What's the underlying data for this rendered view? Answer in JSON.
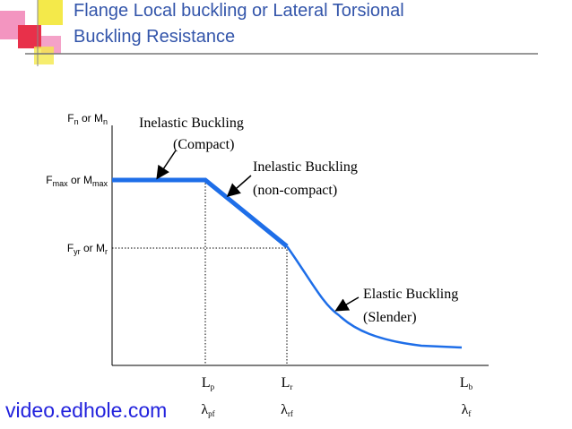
{
  "header": {
    "title_lines": [
      "Flange Local buckling or Lateral Torsional",
      "Buckling Resistance"
    ]
  },
  "diagram": {
    "y_labels": [
      [
        {
          "text": "F"
        },
        {
          "text": "n",
          "sub": true
        },
        {
          "text": " or M"
        },
        {
          "text": "n",
          "sub": true
        }
      ],
      [
        {
          "text": "F"
        },
        {
          "text": "max",
          "sub": true
        },
        {
          "text": " or M"
        },
        {
          "text": "max",
          "sub": true
        }
      ],
      [
        {
          "text": "F"
        },
        {
          "text": "yr",
          "sub": true
        },
        {
          "text": " or M"
        },
        {
          "text": "r",
          "sub": true
        }
      ]
    ],
    "x_labels": [
      {
        "top": [
          {
            "text": "L"
          },
          {
            "text": "p",
            "sub": true
          }
        ],
        "bottom": [
          {
            "text": "λ"
          },
          {
            "text": "pf",
            "sub": true
          }
        ]
      },
      {
        "top": [
          {
            "text": "L"
          },
          {
            "text": "r",
            "sub": true
          }
        ],
        "bottom": [
          {
            "text": "λ"
          },
          {
            "text": "rf",
            "sub": true
          }
        ]
      },
      {
        "top": [
          {
            "text": "L"
          },
          {
            "text": "b",
            "sub": true
          }
        ],
        "bottom": [
          {
            "text": "λ"
          },
          {
            "text": "f",
            "sub": true
          }
        ]
      }
    ],
    "annotations": [
      [
        "Inelastic Buckling",
        "(Compact)"
      ],
      [
        "Inelastic Buckling",
        "(non-compact)"
      ],
      [
        "Elastic Buckling",
        "(Slender)"
      ]
    ]
  },
  "footer": {
    "watermark": "video.edhole.com"
  }
}
